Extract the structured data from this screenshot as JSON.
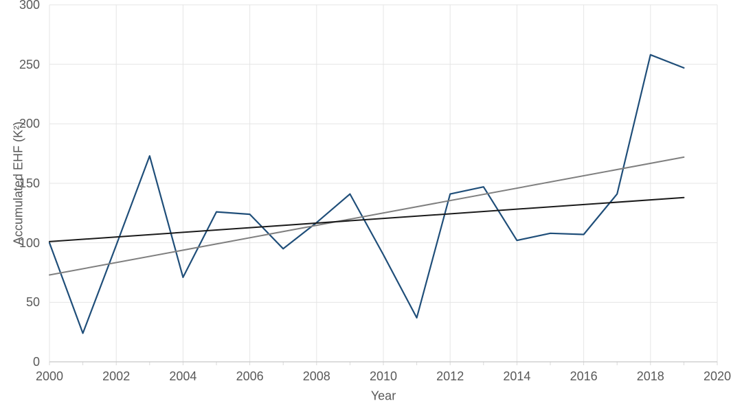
{
  "chart_data": {
    "type": "line",
    "title": "",
    "xlabel": "Year",
    "ylabel": "Accumulated EHF (K²)",
    "xlim": [
      2000,
      2020
    ],
    "ylim": [
      0,
      300
    ],
    "x_ticks": [
      2000,
      2002,
      2004,
      2006,
      2008,
      2010,
      2012,
      2014,
      2016,
      2018,
      2020
    ],
    "y_ticks": [
      0,
      50,
      100,
      150,
      200,
      250,
      300
    ],
    "minor_x_ticks_every_year": true,
    "grid": true,
    "legend_position": "none",
    "x": [
      2000,
      2001,
      2002,
      2003,
      2004,
      2005,
      2006,
      2007,
      2008,
      2009,
      2010,
      2011,
      2012,
      2013,
      2014,
      2015,
      2016,
      2017,
      2018,
      2019
    ],
    "series": [
      {
        "name": "accumulated-ehf",
        "color": "#1F4E79",
        "stroke_width": 2.2,
        "values": [
          100,
          24,
          98,
          173,
          71,
          126,
          124,
          95,
          117,
          141,
          90,
          37,
          141,
          147,
          102,
          108,
          107,
          141,
          258,
          247
        ]
      },
      {
        "name": "linear-trend-gray",
        "color": "#7F7F7F",
        "stroke_width": 2,
        "x": [
          2000,
          2019
        ],
        "values": [
          73,
          172
        ]
      },
      {
        "name": "linear-trend-black",
        "color": "#1A1A1A",
        "stroke_width": 2,
        "x": [
          2000,
          2019
        ],
        "values": [
          101,
          138
        ]
      }
    ],
    "colors": {
      "gridline": "#E5E5E5",
      "axis_line": "#C8C8C8",
      "tick_mark": "#D9D9D9",
      "label_text": "#595959",
      "background": "#FFFFFF"
    }
  }
}
